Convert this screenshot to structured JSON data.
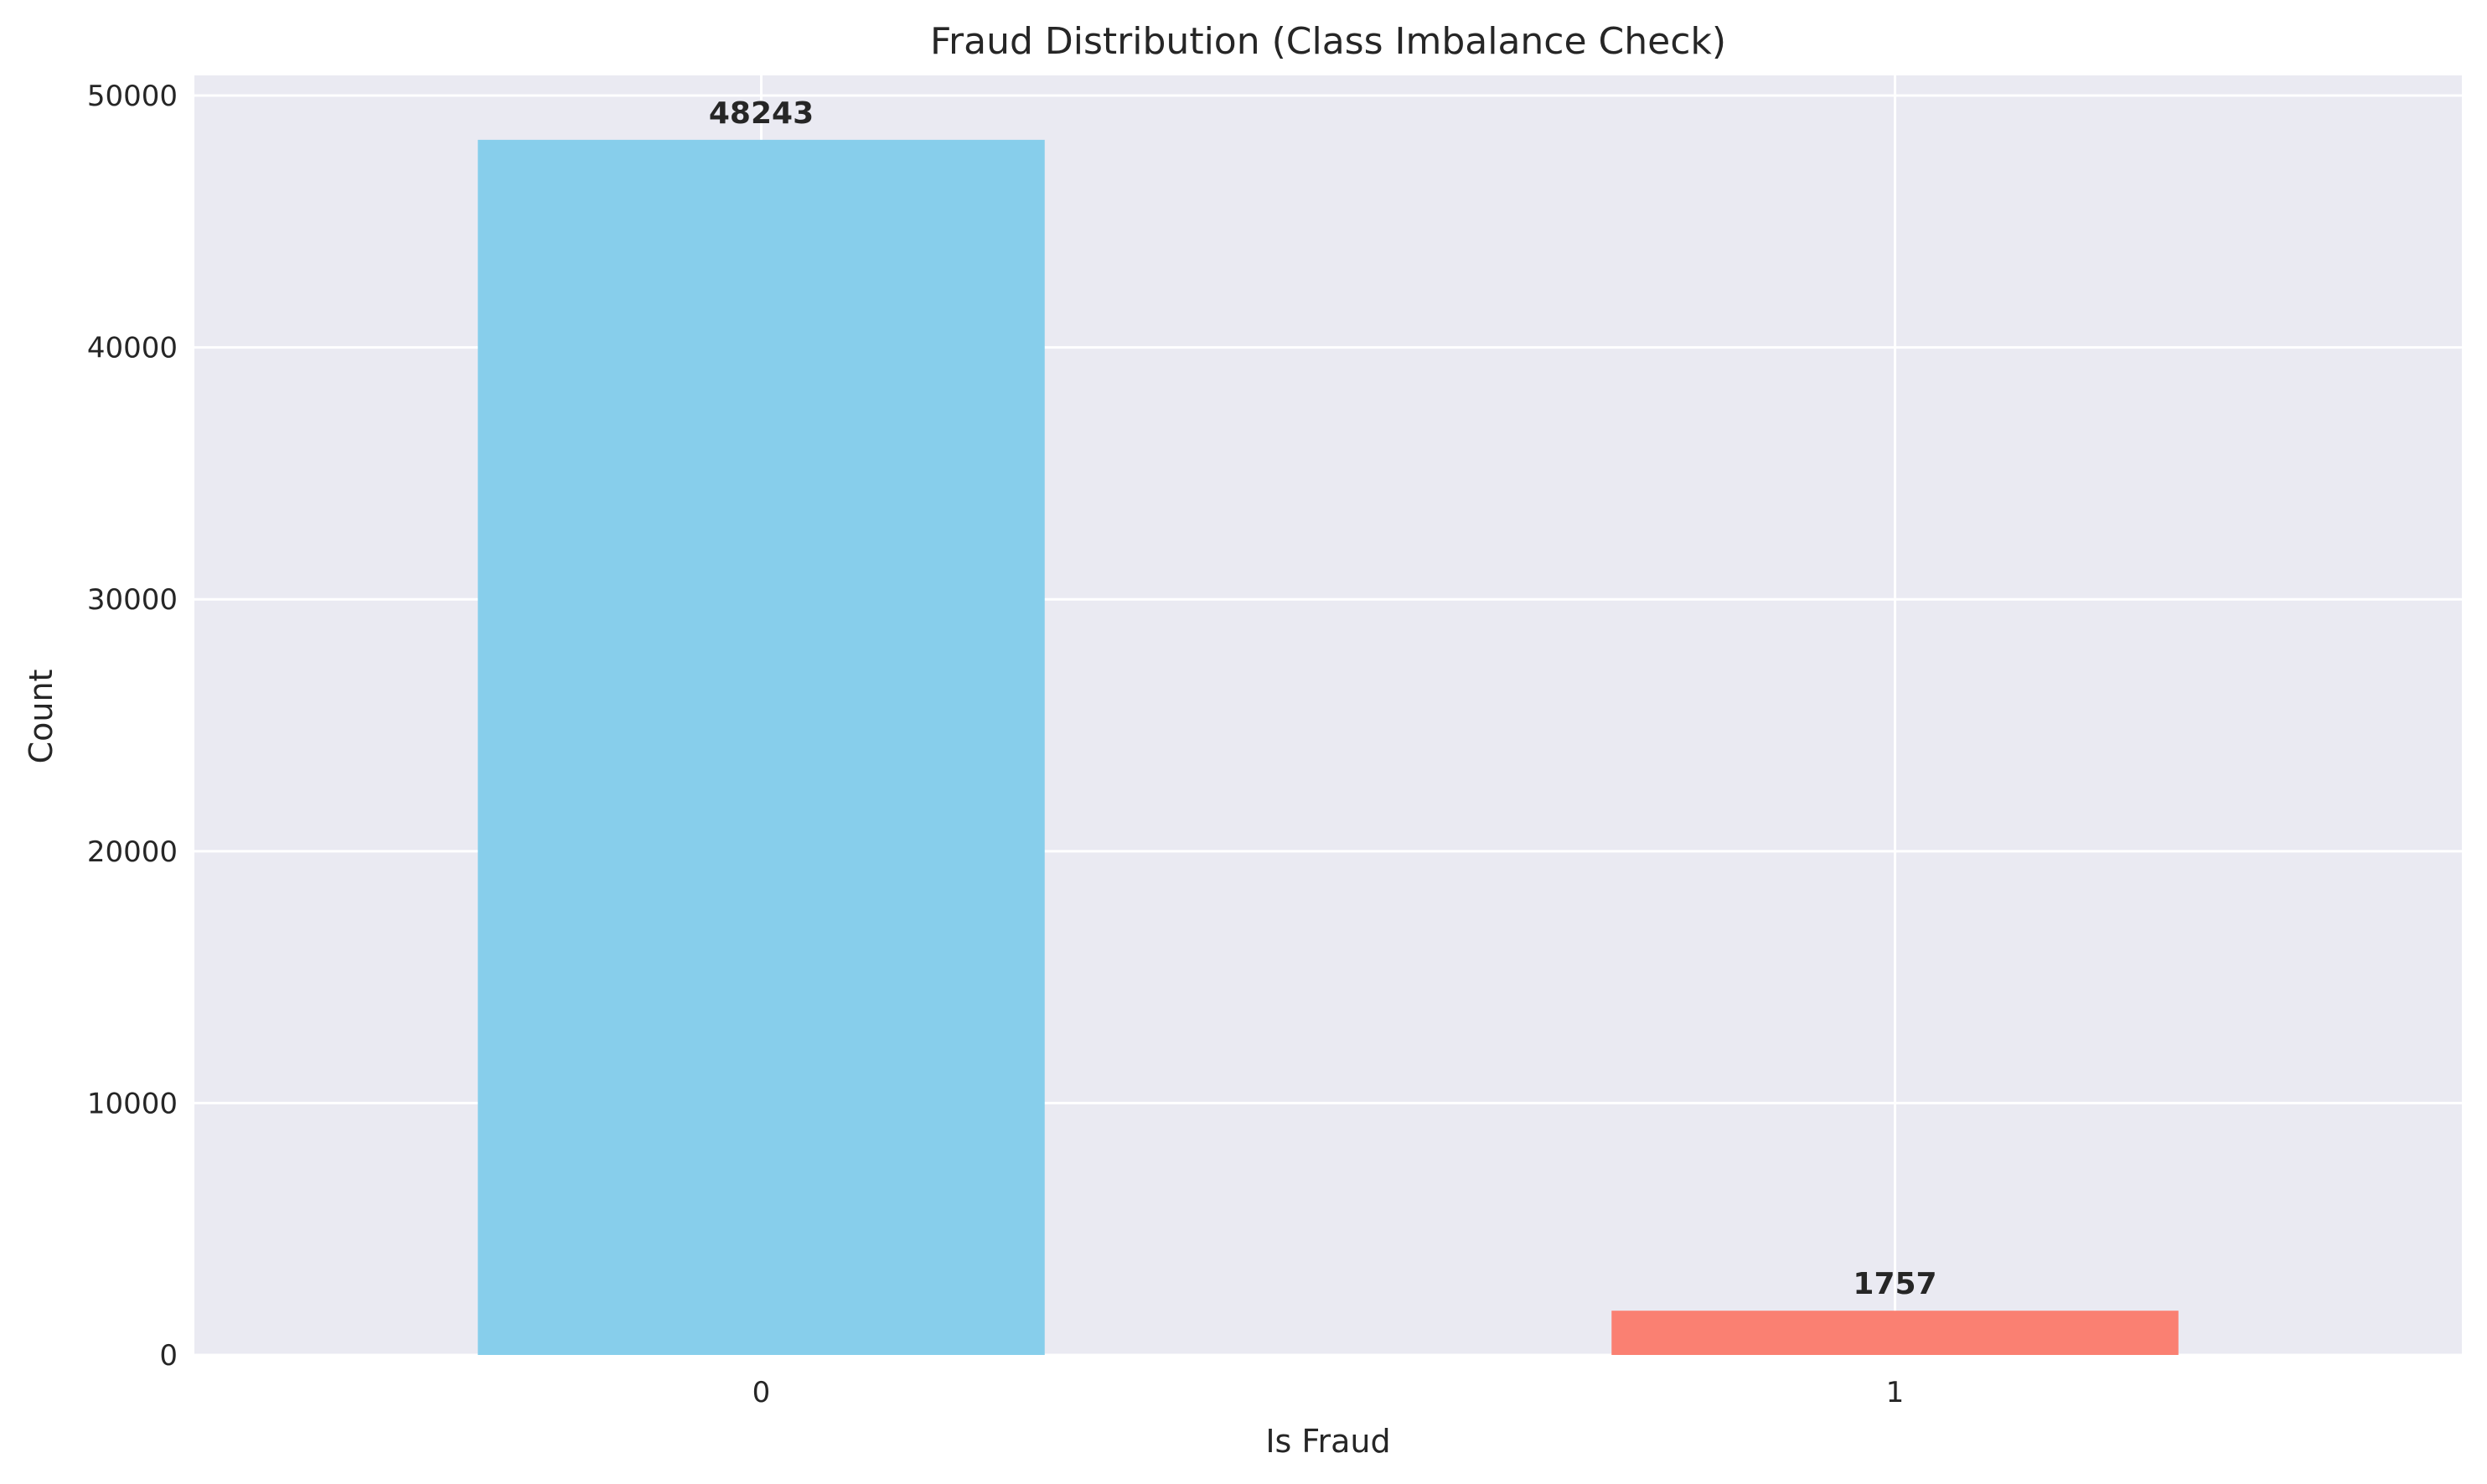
{
  "chart_data": {
    "type": "bar",
    "title": "Fraud Distribution (Class Imbalance Check)",
    "xlabel": "Is Fraud",
    "ylabel": "Count",
    "categories": [
      "0",
      "1"
    ],
    "values": [
      48243,
      1757
    ],
    "data_labels": [
      "48243",
      "1757"
    ],
    "bar_colors": [
      "#87CEEB",
      "#FA8072"
    ],
    "ylim": [
      0,
      50800
    ],
    "yticks": [
      0,
      10000,
      20000,
      30000,
      40000,
      50000
    ],
    "ytick_labels": [
      "0",
      "10000",
      "20000",
      "30000",
      "40000",
      "50000"
    ],
    "grid": true,
    "background_color": "#EAEAF2"
  }
}
